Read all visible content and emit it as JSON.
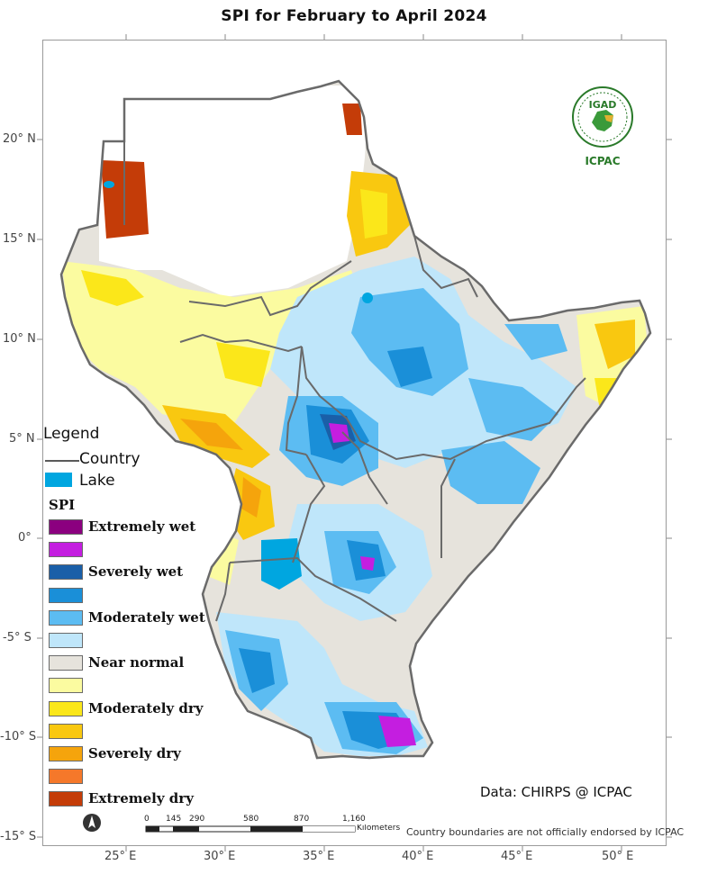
{
  "title": "SPI  for February to April 2024",
  "lat_labels": [
    "20° N",
    "15° N",
    "10° N",
    "5° N",
    "0°",
    "-5° S",
    "-10° S",
    "-15° S"
  ],
  "lon_labels": [
    "25° E",
    "30° E",
    "35° E",
    "40° E",
    "45° E",
    "50° E"
  ],
  "legend": {
    "title": "Legend",
    "country_label": "Country",
    "lake_label": "Lake",
    "spi_title": "SPI",
    "classes": [
      {
        "label": "Extremely wet",
        "color": "#8b007f"
      },
      {
        "label": "",
        "color": "#c41ee0"
      },
      {
        "label": "Severely wet",
        "color": "#1a5fa8"
      },
      {
        "label": "",
        "color": "#1a8fd8"
      },
      {
        "label": "Moderately wet",
        "color": "#5cbcf2"
      },
      {
        "label": "",
        "color": "#bfe6fa"
      },
      {
        "label": "Near normal",
        "color": "#e6e3dc"
      },
      {
        "label": "",
        "color": "#fbfba0"
      },
      {
        "label": "Moderately dry",
        "color": "#fbe71a"
      },
      {
        "label": "",
        "color": "#f9c810"
      },
      {
        "label": "Severely dry",
        "color": "#f5a40c"
      },
      {
        "label": "",
        "color": "#f5782a"
      },
      {
        "label": "Extremely dry",
        "color": "#c43c08"
      }
    ]
  },
  "credit": "Data: CHIRPS @ ICPAC",
  "disclaimer": "Country boundaries are not officially endorsed by ICPAC",
  "scale": {
    "ticks": [
      "0",
      "145",
      "290",
      "580",
      "870",
      "1,160"
    ],
    "unit": "Kilometers"
  },
  "logo": {
    "top_text": "IGAD",
    "bottom_text": "ICPAC"
  },
  "colors": {
    "country_border": "#6a6a6a",
    "lake": "#00a6e0",
    "frame": "#9a9a9a"
  }
}
